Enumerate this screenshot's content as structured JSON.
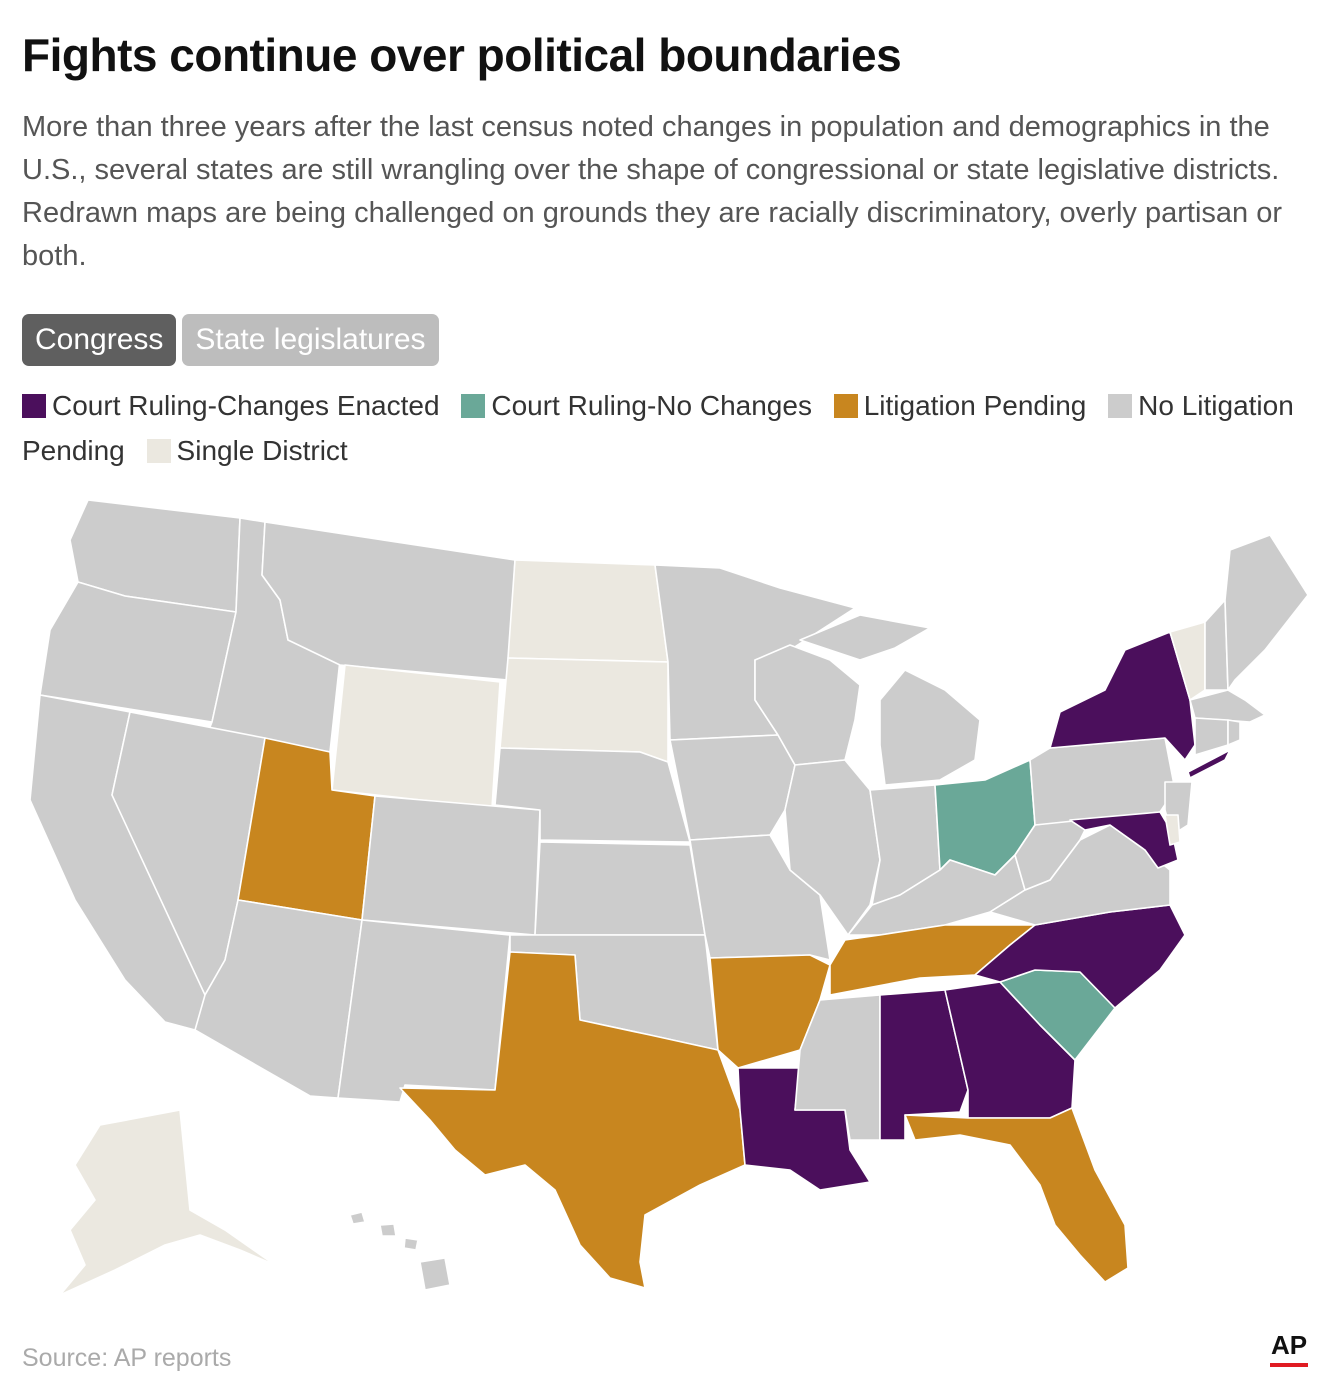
{
  "header": {
    "title": "Fights continue over political boundaries",
    "subtitle": "More than three years after the last census noted changes in population and demographics in the U.S., several states are still wrangling over the shape of congressional or state legislative districts. Redrawn maps are being challenged on grounds they are racially discriminatory, overly partisan or both."
  },
  "tabs": [
    {
      "label": "Congress",
      "selected": true
    },
    {
      "label": "State legislatures",
      "selected": false
    }
  ],
  "legend": [
    {
      "label": "Court Ruling-Changes Enacted",
      "color": "#4b0f5c"
    },
    {
      "label": "Court Ruling-No Changes",
      "color": "#6aa898"
    },
    {
      "label": "Litigation Pending",
      "color": "#c8861f"
    },
    {
      "label": "No Litigation Pending",
      "color": "#cccccc"
    },
    {
      "label": "Single District",
      "color": "#ebe8e0"
    }
  ],
  "map": {
    "status_by_state": {
      "Court Ruling-Changes Enacted": [
        "New York",
        "Maryland",
        "North Carolina",
        "Georgia",
        "Alabama",
        "Louisiana"
      ],
      "Court Ruling-No Changes": [
        "Ohio",
        "South Carolina"
      ],
      "Litigation Pending": [
        "Utah",
        "Texas",
        "Arkansas",
        "Tennessee",
        "Florida"
      ],
      "Single District": [
        "North Dakota",
        "South Dakota",
        "Wyoming",
        "Vermont",
        "Delaware",
        "Alaska"
      ]
    }
  },
  "footer": {
    "source": "Source: AP reports",
    "logo": "AP"
  }
}
